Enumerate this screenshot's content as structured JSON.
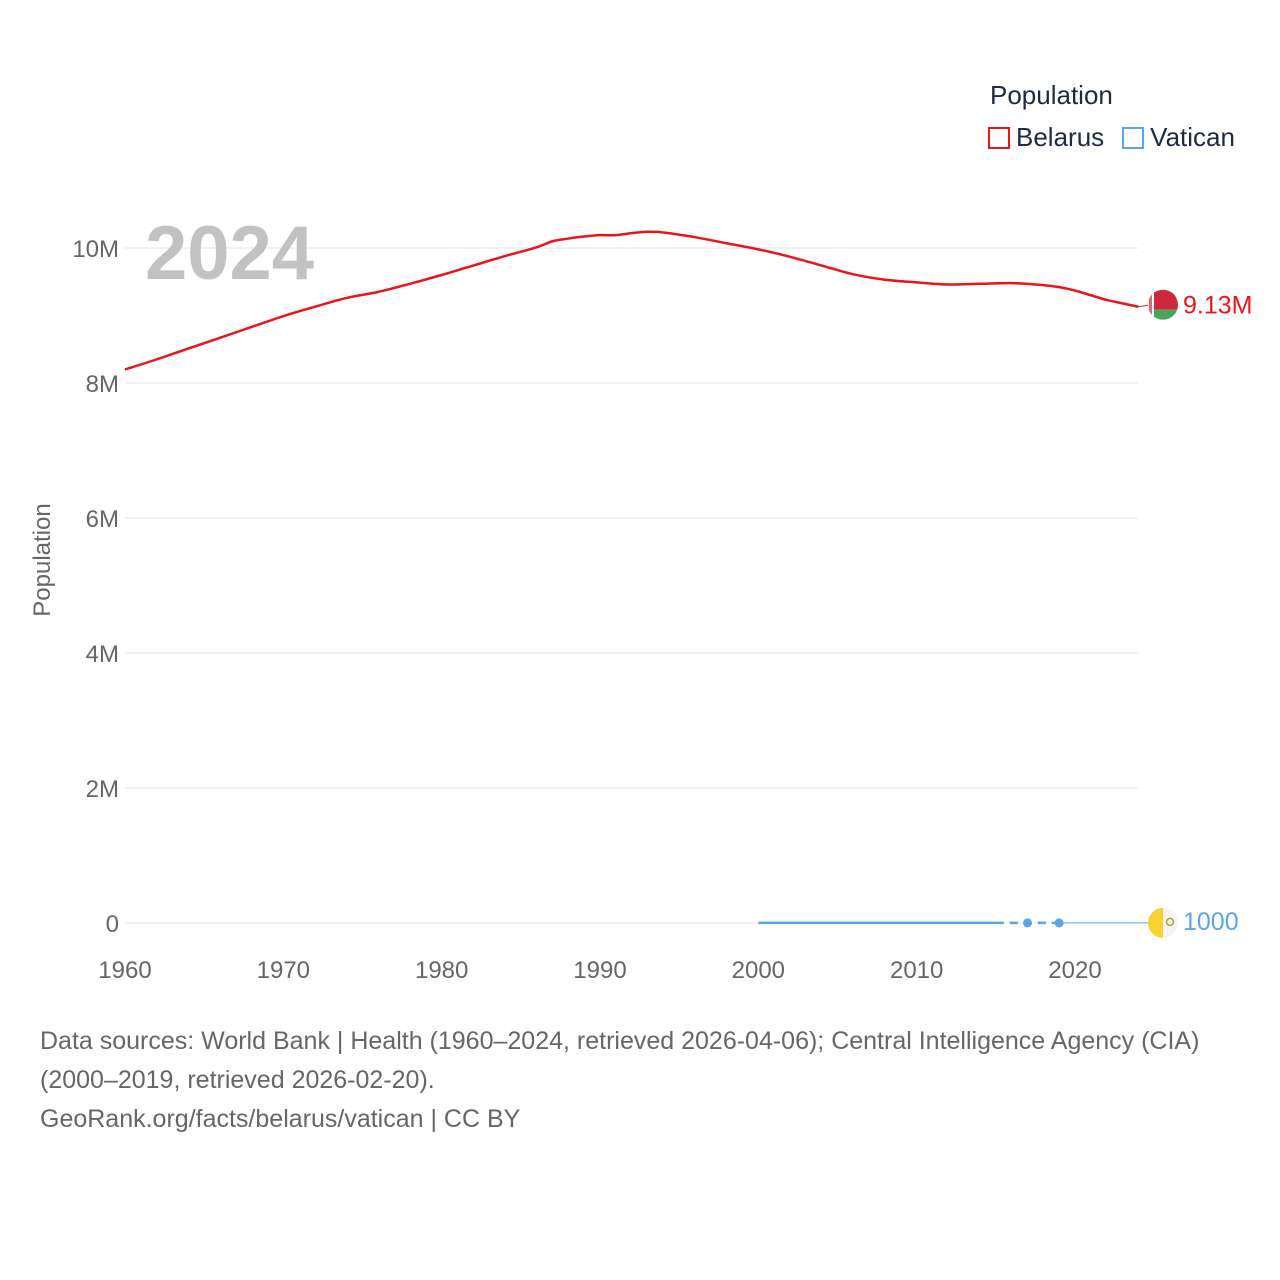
{
  "legend": {
    "title": "Population",
    "items": [
      {
        "label": "Belarus",
        "color": "#e8161b"
      },
      {
        "label": "Vatican",
        "color": "#5aa5e8"
      }
    ]
  },
  "year_watermark": "2024",
  "chart_data": {
    "type": "line",
    "ylabel": "Population",
    "xlabel": "",
    "xlim": [
      1960,
      2024
    ],
    "ylim": [
      0,
      10000000
    ],
    "x_ticks": [
      "1960",
      "1970",
      "1980",
      "1990",
      "2000",
      "2010",
      "2020"
    ],
    "y_ticks": [
      {
        "value": 0,
        "label": "0"
      },
      {
        "value": 2000000,
        "label": "2M"
      },
      {
        "value": 4000000,
        "label": "4M"
      },
      {
        "value": 6000000,
        "label": "6M"
      },
      {
        "value": 8000000,
        "label": "8M"
      },
      {
        "value": 10000000,
        "label": "10M"
      }
    ],
    "grid": true,
    "series": [
      {
        "name": "Belarus",
        "color": "#e8161b",
        "end_label": "9.13M",
        "flag": "belarus-flag",
        "x": [
          1960,
          1962,
          1964,
          1966,
          1968,
          1970,
          1972,
          1974,
          1976,
          1978,
          1980,
          1982,
          1984,
          1986,
          1987,
          1988,
          1989,
          1990,
          1991,
          1992,
          1993,
          1994,
          1996,
          1998,
          2000,
          2002,
          2004,
          2006,
          2008,
          2010,
          2012,
          2014,
          2016,
          2018,
          2019,
          2020,
          2021,
          2022,
          2023,
          2024
        ],
        "y": [
          8200000,
          8350000,
          8510000,
          8670000,
          8830000,
          8990000,
          9130000,
          9260000,
          9350000,
          9470000,
          9600000,
          9740000,
          9880000,
          10010000,
          10100000,
          10140000,
          10170000,
          10190000,
          10190000,
          10220000,
          10240000,
          10230000,
          10160000,
          10070000,
          9980000,
          9870000,
          9740000,
          9610000,
          9530000,
          9490000,
          9460000,
          9470000,
          9480000,
          9450000,
          9420000,
          9370000,
          9300000,
          9230000,
          9180000,
          9130000
        ]
      },
      {
        "name": "Vatican",
        "color": "#5aa5e8",
        "end_label": "1000",
        "flag": "vatican-flag",
        "x": [
          2000,
          2015,
          2017,
          2019,
          2024
        ],
        "y": [
          1000,
          1000,
          1000,
          1000,
          1000
        ],
        "markers_at": [
          2017,
          2019
        ],
        "dashed_from": 2015,
        "dashed_to": 2019
      }
    ]
  },
  "footer": {
    "line1": "Data sources: World Bank | Health (1960–2024, retrieved 2026-04-06); Central Intelligence Agency (CIA)",
    "line2": "(2000–2019, retrieved 2026-02-20).",
    "line3": "GeoRank.org/facts/belarus/vatican | CC BY"
  }
}
